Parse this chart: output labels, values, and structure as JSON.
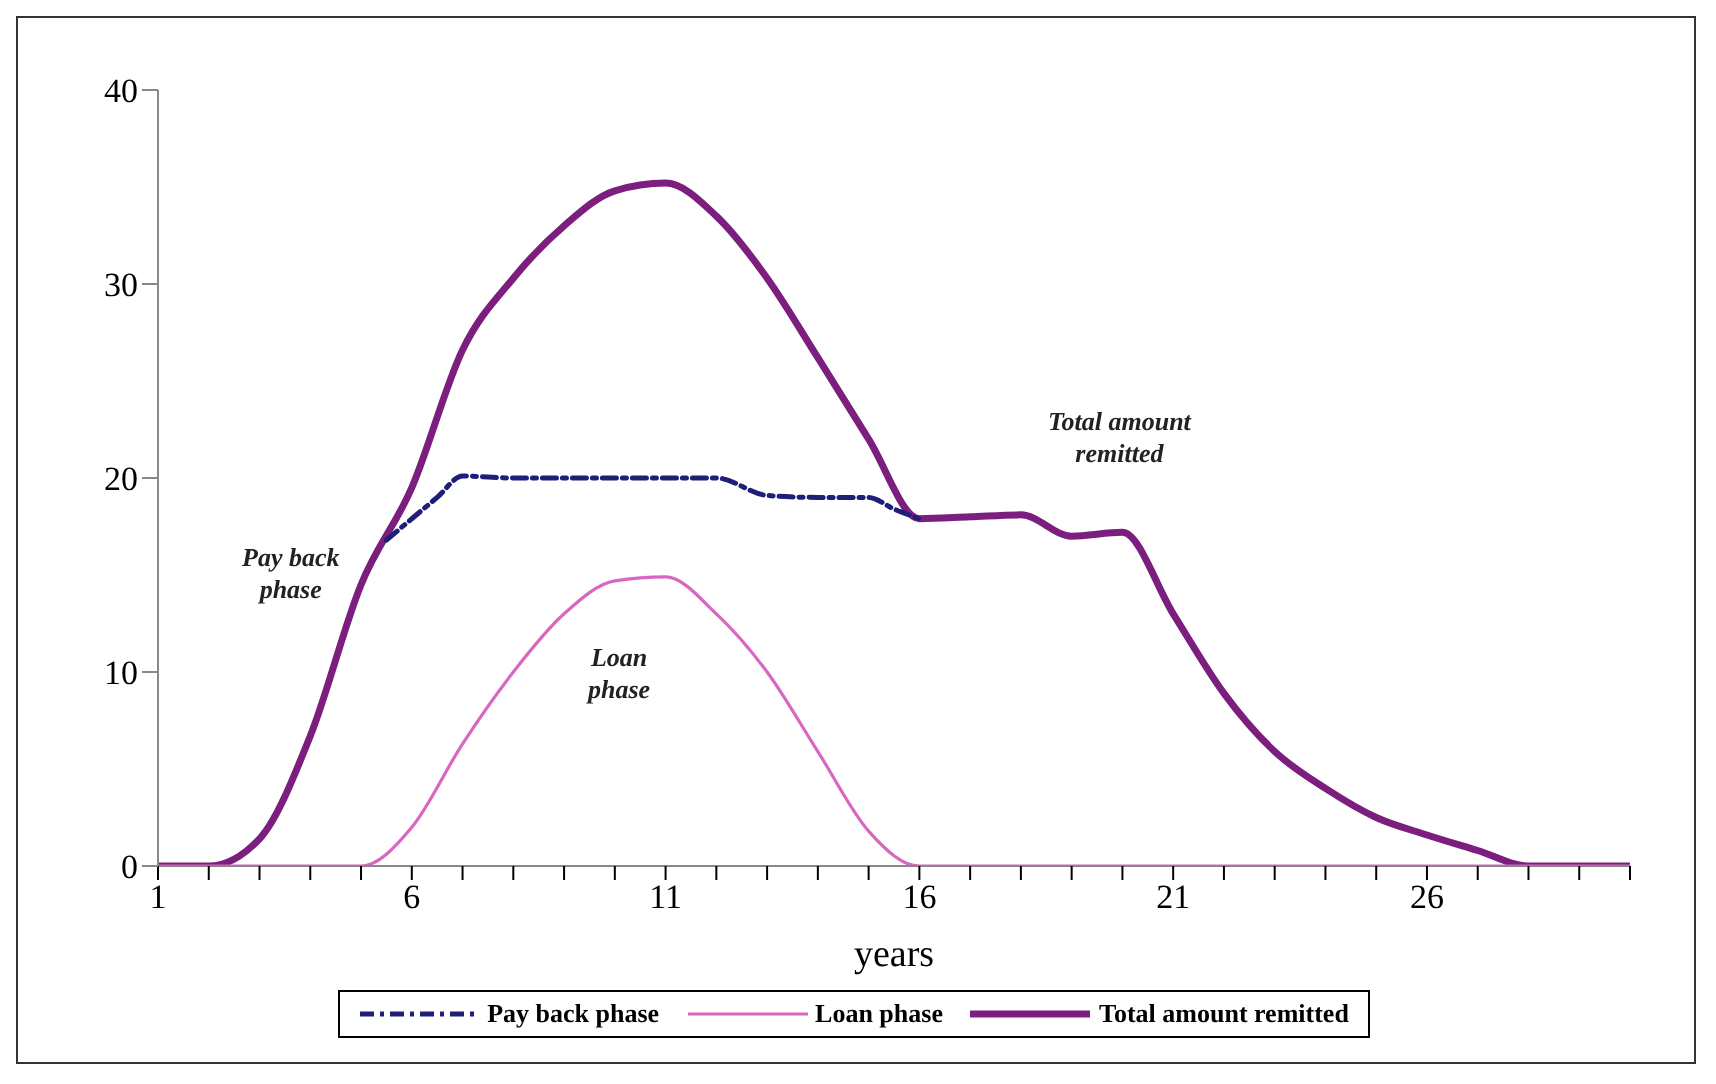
{
  "chart_data": {
    "type": "line",
    "xlabel": "years",
    "xlim": [
      1,
      30
    ],
    "xticks": [
      1,
      {
        "value": 2,
        "label": null
      },
      {
        "value": 3,
        "label": null
      },
      {
        "value": 4,
        "label": null
      },
      {
        "value": 5,
        "label": null
      },
      6,
      {
        "value": 7,
        "label": null
      },
      {
        "value": 8,
        "label": null
      },
      {
        "value": 9,
        "label": null
      },
      {
        "value": 10,
        "label": null
      },
      11,
      {
        "value": 12,
        "label": null
      },
      {
        "value": 13,
        "label": null
      },
      {
        "value": 14,
        "label": null
      },
      {
        "value": 15,
        "label": null
      },
      16,
      {
        "value": 17,
        "label": null
      },
      {
        "value": 18,
        "label": null
      },
      {
        "value": 19,
        "label": null
      },
      {
        "value": 20,
        "label": null
      },
      21,
      {
        "value": 22,
        "label": null
      },
      {
        "value": 23,
        "label": null
      },
      {
        "value": 24,
        "label": null
      },
      {
        "value": 25,
        "label": null
      },
      26,
      {
        "value": 27,
        "label": null
      },
      {
        "value": 28,
        "label": null
      },
      {
        "value": 29,
        "label": null
      },
      {
        "value": 30,
        "label": null
      }
    ],
    "ylim": [
      0,
      40
    ],
    "yticks": [
      0,
      10,
      20,
      30,
      40
    ],
    "grid": false,
    "legend": "bottom",
    "series": [
      {
        "name": "Pay back phase",
        "color": "#1f1f7a",
        "line_style": "dashed",
        "x": [
          5.5,
          6,
          6.5,
          7,
          8,
          9,
          10,
          11,
          12,
          13,
          14,
          15,
          15.5,
          16
        ],
        "values": [
          16.8,
          17.9,
          19,
          20.1,
          20,
          20,
          20,
          20,
          20,
          19.1,
          19,
          19,
          18.4,
          17.9
        ]
      },
      {
        "name": "Loan phase",
        "color": "#d966c0",
        "line_style": "solid",
        "x": [
          1,
          2,
          3,
          4,
          5,
          6,
          7,
          8,
          9,
          10,
          11,
          12,
          13,
          14,
          15,
          16,
          17,
          18,
          19,
          20,
          21,
          22,
          23,
          24,
          25,
          26,
          27,
          28,
          29,
          30
        ],
        "values": [
          0,
          0,
          0,
          0,
          0,
          2,
          6.3,
          10,
          13,
          14.7,
          14.9,
          13,
          10,
          5.9,
          1.8,
          0,
          0,
          0,
          0,
          0,
          0,
          0,
          0,
          0,
          0,
          0,
          0,
          0,
          0,
          0
        ]
      },
      {
        "name": "Total amount remitted",
        "color": "#7b1e7e",
        "line_style": "solid",
        "x": [
          1,
          2,
          3,
          4,
          5,
          6,
          7,
          8,
          9,
          10,
          11,
          12,
          13,
          14,
          15,
          16,
          17,
          18,
          19,
          20,
          21,
          22,
          23,
          24,
          25,
          26,
          27,
          28,
          29,
          30
        ],
        "values": [
          0,
          0,
          1.4,
          6.7,
          14.5,
          19.5,
          26.6,
          30.3,
          33,
          34.8,
          35.2,
          33.5,
          30.3,
          26.2,
          22,
          17.9,
          18,
          18.1,
          17,
          17.2,
          13,
          8.9,
          5.9,
          4,
          2.5,
          1.6,
          0.8,
          0,
          0,
          0
        ]
      }
    ],
    "annotations": [
      "Pay back phase",
      "Loan phase",
      "Total amount remitted"
    ]
  }
}
